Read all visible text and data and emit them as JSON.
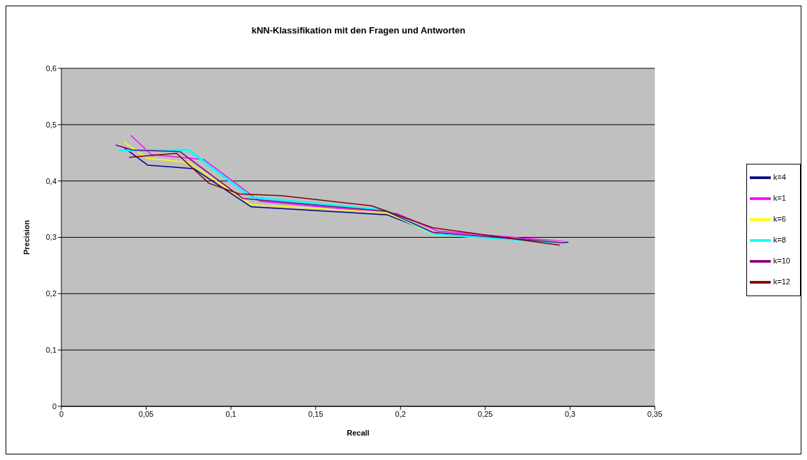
{
  "chart_data": {
    "type": "line",
    "title": "kNN-Klassifikation mit den Fragen und Antworten",
    "xlabel": "Recall",
    "ylabel": "Precision",
    "xlim": [
      0,
      0.35
    ],
    "xticks": [
      0,
      {
        "value": 0.05,
        "label": "0,05"
      },
      {
        "value": 0.1,
        "label": "0,1"
      },
      {
        "value": 0.15,
        "label": "0,15"
      },
      {
        "value": 0.2,
        "label": "0,2"
      },
      {
        "value": 0.25,
        "label": "0,25"
      },
      {
        "value": 0.3,
        "label": "0,3"
      },
      {
        "value": 0.35,
        "label": "0,35"
      }
    ],
    "ylim": [
      0,
      0.6
    ],
    "yticks": [
      0,
      {
        "value": 0.1,
        "label": "0,1"
      },
      {
        "value": 0.2,
        "label": "0,2"
      },
      {
        "value": 0.3,
        "label": "0,3"
      },
      {
        "value": 0.4,
        "label": "0,4"
      },
      {
        "value": 0.5,
        "label": "0,5"
      },
      {
        "value": 0.6,
        "label": "0,6"
      }
    ],
    "grid": "y",
    "legend": "right",
    "marker": "none",
    "series": [
      {
        "name": "k=4",
        "color": "#000080",
        "x": [
          0.037,
          0.051,
          0.078,
          0.112,
          0.192,
          0.22,
          0.299
        ],
        "values": [
          0.459,
          0.428,
          0.422,
          0.354,
          0.34,
          0.307,
          0.291
        ]
      },
      {
        "name": "k=1",
        "color": "#ff00ff",
        "x": [
          0.041,
          0.053,
          0.084,
          0.117,
          0.198,
          0.222,
          0.296
        ],
        "values": [
          0.481,
          0.447,
          0.438,
          0.364,
          0.342,
          0.311,
          0.293
        ]
      },
      {
        "name": "k=6",
        "color": "#ffff00",
        "x": [
          0.037,
          0.051,
          0.075,
          0.112,
          0.192,
          0.22,
          0.296
        ],
        "values": [
          0.469,
          0.44,
          0.433,
          0.358,
          0.344,
          0.304,
          0.292
        ]
      },
      {
        "name": "k=8",
        "color": "#00ffff",
        "x": [
          0.034,
          0.075,
          0.112,
          0.191,
          0.22,
          0.297
        ],
        "values": [
          0.454,
          0.455,
          0.371,
          0.348,
          0.306,
          0.29
        ]
      },
      {
        "name": "k=10",
        "color": "#800080",
        "x": [
          0.032,
          0.042,
          0.07,
          0.107,
          0.192,
          0.219,
          0.297
        ],
        "values": [
          0.464,
          0.455,
          0.452,
          0.369,
          0.346,
          0.309,
          0.29
        ]
      },
      {
        "name": "k=12",
        "color": "#800000",
        "x": [
          0.04,
          0.068,
          0.087,
          0.105,
          0.13,
          0.183,
          0.219,
          0.294
        ],
        "values": [
          0.442,
          0.449,
          0.396,
          0.377,
          0.374,
          0.356,
          0.317,
          0.286
        ]
      }
    ]
  }
}
